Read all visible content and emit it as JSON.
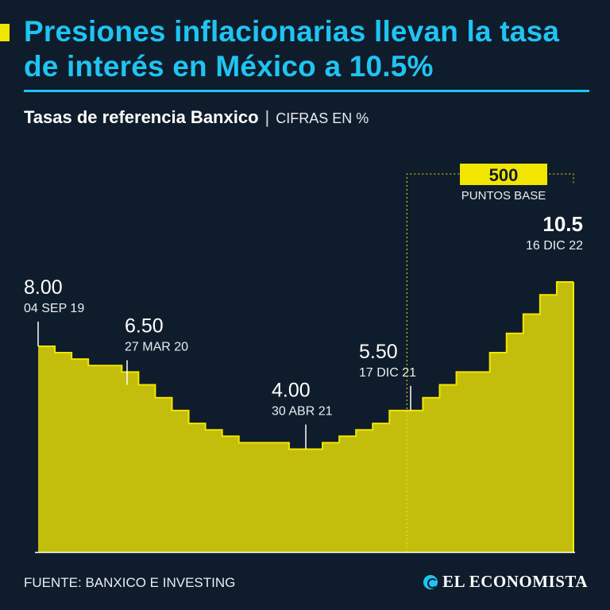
{
  "header": {
    "title": "Presiones inflacionarias llevan la tasa de interés en México a 10.5%",
    "subtitle": "Tasas de referencia Banxico",
    "separator": "|",
    "unit": "CIFRAS EN %"
  },
  "colors": {
    "background": "#0f1c2b",
    "accent": "#1fc4f2",
    "area_fill": "#c3bd0c",
    "area_line": "#f2e600",
    "badge": "#f2e600"
  },
  "chart_data": {
    "type": "area",
    "step": true,
    "values": [
      8.0,
      7.75,
      7.5,
      7.25,
      7.25,
      7.0,
      6.5,
      6.0,
      5.5,
      5.0,
      4.75,
      4.5,
      4.25,
      4.25,
      4.25,
      4.0,
      4.0,
      4.25,
      4.5,
      4.75,
      5.0,
      5.5,
      5.5,
      6.0,
      6.5,
      7.0,
      7.0,
      7.75,
      8.5,
      9.25,
      10.0,
      10.5
    ],
    "ylim": [
      0,
      11
    ],
    "grid": false,
    "annotations": [
      {
        "index": 0,
        "value": "8.00",
        "date": "04 SEP 19"
      },
      {
        "index": 6,
        "value": "6.50",
        "date": "27 MAR 20"
      },
      {
        "index": 15,
        "value": "4.00",
        "date": "30 ABR 21"
      },
      {
        "index": 21,
        "value": "5.50",
        "date": "17 DIC 21"
      },
      {
        "index": 31,
        "value": "10.5",
        "date": "16 DIC 22"
      }
    ],
    "change_badge": {
      "from_index": 21,
      "to_index": 31,
      "value": "500",
      "label": "PUNTOS BASE"
    }
  },
  "footer": {
    "source": "FUENTE: BANXICO E INVESTING",
    "brand": "EL ECONOMISTA"
  }
}
